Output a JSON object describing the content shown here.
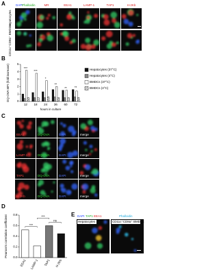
{
  "panel_labels": [
    "A",
    "B",
    "C",
    "D",
    "E"
  ],
  "panel_a": {
    "stain": [
      "DAPI",
      "Phalloidin"
    ],
    "markers": [
      "MR",
      "EEA1",
      "LAMP-1",
      "TAP1",
      "H-2Kb"
    ],
    "rows": [
      "Hepatocytes",
      "CD11c⁺CD8α⁺ BMDCs"
    ]
  },
  "panel_c": {
    "rows": [
      "EEA1",
      "LAMP-1",
      "TAP1",
      "H-2Kb"
    ],
    "channels": [
      "DQ-OVA",
      "DAPI",
      "merge"
    ]
  },
  "panel_e": {
    "stain": [
      "DAPI",
      "TAP1",
      "EEA1"
    ],
    "stain_right": "Phalloidin",
    "cells": [
      "Hepatocytes",
      "CD11c⁺CD8α⁺ BMDCs"
    ]
  },
  "chart_data": [
    {
      "type": "bar",
      "y_label": "DQ-OVA MFI (fold increase)",
      "x_label": "hours in culture",
      "categories": [
        "12",
        "18",
        "24",
        "36",
        "60",
        "72"
      ],
      "series": [
        {
          "name": "Hepatocytes (37°C)",
          "color": "#111111",
          "values": [
            1.0,
            1.2,
            1.3,
            1.6,
            1.5,
            1.6
          ]
        },
        {
          "name": "Hepatocytes (4°C)",
          "color": "#8a8a8a",
          "values": [
            0.4,
            0.5,
            0.5,
            0.6,
            0.5,
            0.6
          ]
        },
        {
          "name": "BMDCs (37°C)",
          "color": "#ffffff",
          "values": [
            4.2,
            3.8,
            2.8,
            2.0,
            1.5,
            1.4
          ]
        },
        {
          "name": "BMDCs (4°C)",
          "color": "hatch",
          "values": [
            0.5,
            0.5,
            0.6,
            0.5,
            0.5,
            0.5
          ]
        }
      ],
      "annotations": [
        "***",
        "***",
        "*",
        "**",
        "**",
        "**"
      ],
      "ylim": [
        0,
        5
      ],
      "yticks": [
        0,
        1,
        2,
        3,
        4,
        5
      ]
    },
    {
      "type": "bar",
      "y_label": "Pearson's correlation coefficient",
      "categories": [
        "EEA1",
        "LAMP-1",
        "TAP1",
        "H-2Kb"
      ],
      "values": [
        0.52,
        0.22,
        0.6,
        0.45
      ],
      "colors": [
        "#ffffff",
        "#ffffff",
        "#777777",
        "#111111"
      ],
      "comparisons": [
        {
          "pair": [
            "EEA1",
            "LAMP-1"
          ],
          "label": "***"
        },
        {
          "pair": [
            "LAMP-1",
            "TAP1"
          ],
          "label": "***"
        },
        {
          "pair": [
            "TAP1",
            "H-2Kb"
          ],
          "label": "ns"
        }
      ],
      "ylim": [
        0,
        0.8
      ],
      "yticks": [
        {
          "value": 0,
          "label": "0.0"
        },
        {
          "value": 0.2,
          "label": "0.2"
        },
        {
          "value": 0.4,
          "label": "0.4"
        },
        {
          "value": 0.6,
          "label": "0.6"
        },
        {
          "value": 0.8,
          "label": "0.8"
        }
      ]
    }
  ]
}
